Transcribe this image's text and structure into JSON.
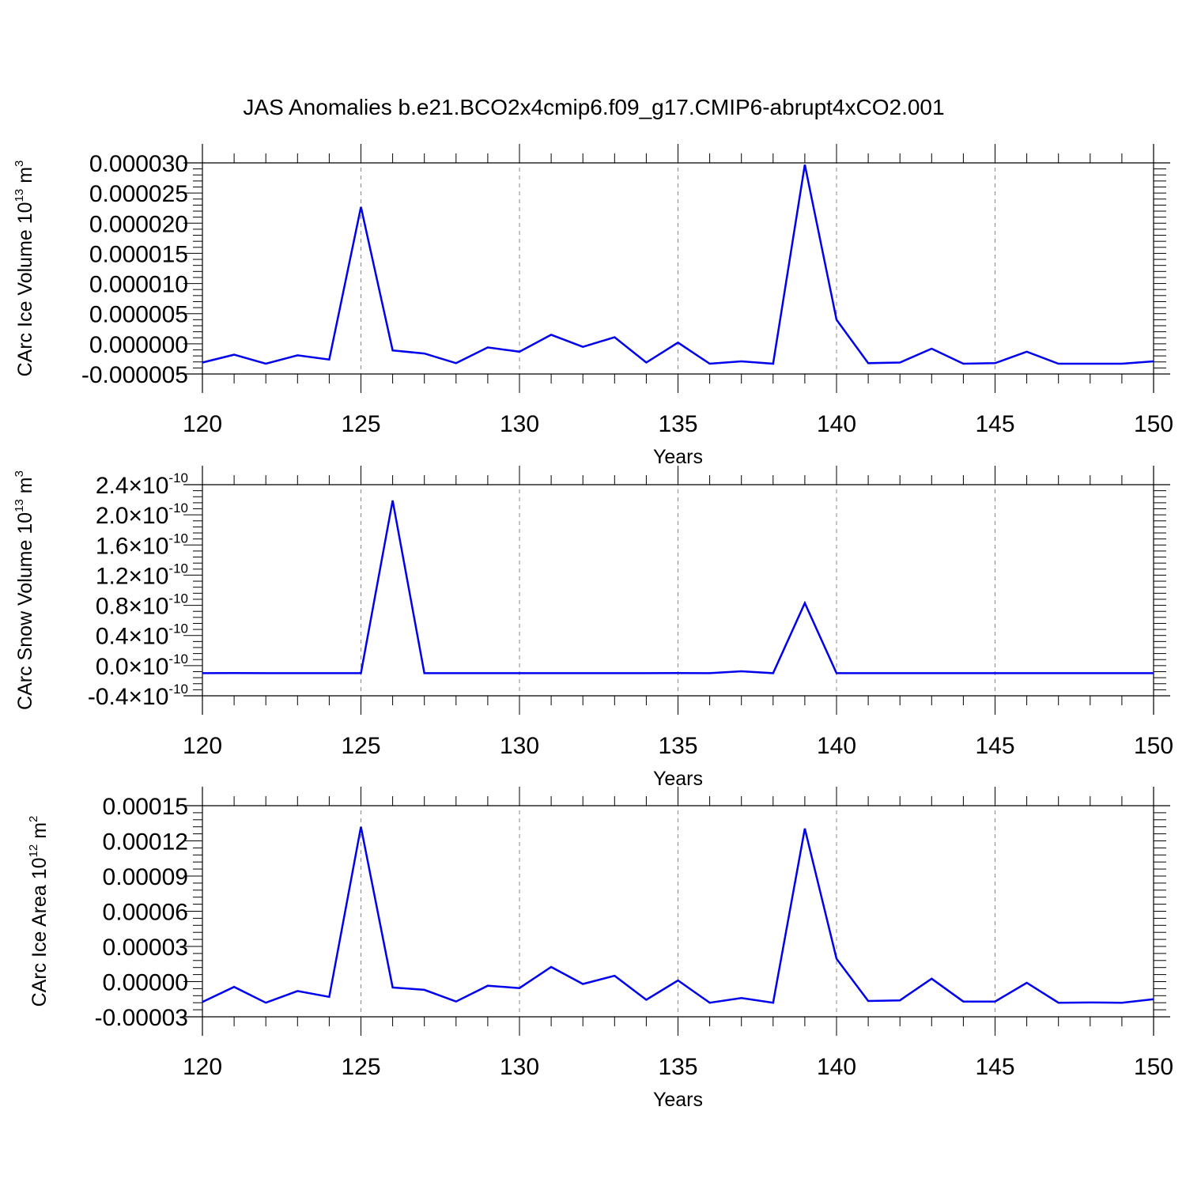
{
  "title": "JAS Anomalies b.e21.BCO2x4cmip6.f09_g17.CMIP6-abrupt4xCO2.001",
  "chart_data": [
    {
      "type": "line",
      "xlabel": "Years",
      "ylabel": "CArc Ice Volume 10",
      "ylabel_exp": "13",
      "ylabel_unit": " m",
      "ylabel_unit_exp": "3",
      "xlim": [
        120,
        150
      ],
      "ylim": [
        -5e-06,
        3e-05
      ],
      "x_ticks": [
        "120",
        "125",
        "130",
        "135",
        "140",
        "145",
        "150"
      ],
      "y_ticks": [
        {
          "value": 3e-05,
          "label": "0.000030"
        },
        {
          "value": 2.5e-05,
          "label": "0.000025"
        },
        {
          "value": 2e-05,
          "label": "0.000020"
        },
        {
          "value": 1.5e-05,
          "label": "0.000015"
        },
        {
          "value": 1e-05,
          "label": "0.000010"
        },
        {
          "value": 5e-06,
          "label": "0.000005"
        },
        {
          "value": 0.0,
          "label": "0.000000"
        },
        {
          "value": -5e-06,
          "label": "-0.000005"
        }
      ],
      "x": [
        120,
        121,
        122,
        123,
        124,
        125,
        126,
        127,
        128,
        129,
        130,
        131,
        132,
        133,
        134,
        135,
        136,
        137,
        138,
        139,
        140,
        141,
        142,
        143,
        144,
        145,
        146,
        147,
        148,
        149,
        150
      ],
      "series": [
        {
          "color": "#0000ee",
          "values": [
            -3.1e-06,
            -1.8e-06,
            -3.3e-06,
            -1.9e-06,
            -2.6e-06,
            2.27e-05,
            -1.1e-06,
            -1.6e-06,
            -3.2e-06,
            -6e-07,
            -1.3e-06,
            1.5e-06,
            -5e-07,
            1.1e-06,
            -3.1e-06,
            2e-07,
            -3.3e-06,
            -2.9e-06,
            -3.3e-06,
            2.97e-05,
            4e-06,
            -3.2e-06,
            -3.1e-06,
            -8e-07,
            -3.3e-06,
            -3.2e-06,
            -1.3e-06,
            -3.3e-06,
            -3.3e-06,
            -3.3e-06,
            -2.9e-06
          ]
        }
      ]
    },
    {
      "type": "line",
      "xlabel": "Years",
      "ylabel": "CArc Snow Volume 10",
      "ylabel_exp": "13",
      "ylabel_unit": " m",
      "ylabel_unit_exp": "3",
      "xlim": [
        120,
        150
      ],
      "ylim": [
        -4e-11,
        2.4e-10
      ],
      "x_ticks": [
        "120",
        "125",
        "130",
        "135",
        "140",
        "145",
        "150"
      ],
      "y_ticks": [
        {
          "value": 2.4e-10,
          "label": "2.4",
          "times": "×10",
          "exp": "-10"
        },
        {
          "value": 2e-10,
          "label": "2.0",
          "times": "×10",
          "exp": "-10"
        },
        {
          "value": 1.6e-10,
          "label": "1.6",
          "times": "×10",
          "exp": "-10"
        },
        {
          "value": 1.2e-10,
          "label": "1.2",
          "times": "×10",
          "exp": "-10"
        },
        {
          "value": 8e-11,
          "label": "0.8",
          "times": "×10",
          "exp": "-10"
        },
        {
          "value": 4e-11,
          "label": "0.4",
          "times": "×10",
          "exp": "-10"
        },
        {
          "value": 0.0,
          "label": "0.0",
          "times": "×10",
          "exp": "-10"
        },
        {
          "value": -4e-11,
          "label": "-0.4",
          "times": "×10",
          "exp": "-10"
        }
      ],
      "x": [
        120,
        121,
        122,
        123,
        124,
        125,
        126,
        127,
        128,
        129,
        130,
        131,
        132,
        133,
        134,
        135,
        136,
        137,
        138,
        139,
        140,
        141,
        142,
        143,
        144,
        145,
        146,
        147,
        148,
        149,
        150
      ],
      "series": [
        {
          "color": "#0000ee",
          "values": [
            -1e-11,
            -9.8e-12,
            -1e-11,
            -1e-11,
            -1e-11,
            -1e-11,
            2.19e-10,
            -1e-11,
            -1e-11,
            -1e-11,
            -1e-11,
            -1e-11,
            -1e-11,
            -1e-11,
            -1e-11,
            -9.8e-12,
            -1e-11,
            -7.5e-12,
            -1e-11,
            8.3e-11,
            -1e-11,
            -1e-11,
            -1e-11,
            -1e-11,
            -1e-11,
            -1e-11,
            -1e-11,
            -1e-11,
            -1e-11,
            -1e-11,
            -1e-11
          ]
        }
      ]
    },
    {
      "type": "line",
      "xlabel": "Years",
      "ylabel": "CArc Ice Area 10",
      "ylabel_exp": "12",
      "ylabel_unit": " m",
      "ylabel_unit_exp": "2",
      "xlim": [
        120,
        150
      ],
      "ylim": [
        -3e-05,
        0.00015
      ],
      "x_ticks": [
        "120",
        "125",
        "130",
        "135",
        "140",
        "145",
        "150"
      ],
      "y_ticks": [
        {
          "value": 0.00015,
          "label": "0.00015"
        },
        {
          "value": 0.00012,
          "label": "0.00012"
        },
        {
          "value": 9e-05,
          "label": "0.00009"
        },
        {
          "value": 6e-05,
          "label": "0.00006"
        },
        {
          "value": 3e-05,
          "label": "0.00003"
        },
        {
          "value": 0.0,
          "label": "0.00000"
        },
        {
          "value": -3e-05,
          "label": "-0.00003"
        }
      ],
      "x": [
        120,
        121,
        122,
        123,
        124,
        125,
        126,
        127,
        128,
        129,
        130,
        131,
        132,
        133,
        134,
        135,
        136,
        137,
        138,
        139,
        140,
        141,
        142,
        143,
        144,
        145,
        146,
        147,
        148,
        149,
        150
      ],
      "series": [
        {
          "color": "#0000ee",
          "values": [
            -1.73e-05,
            -4.5e-06,
            -1.8e-05,
            -8e-06,
            -1.3e-05,
            0.000132,
            -5e-06,
            -7e-06,
            -1.7e-05,
            -3.5e-06,
            -5.5e-06,
            1.25e-05,
            -2e-06,
            5e-06,
            -1.55e-05,
            1e-06,
            -1.8e-05,
            -1.4e-05,
            -1.8e-05,
            0.0001305,
            1.95e-05,
            -1.65e-05,
            -1.6e-05,
            2.5e-06,
            -1.7e-05,
            -1.7e-05,
            -1e-06,
            -1.8e-05,
            -1.78e-05,
            -1.8e-05,
            -1.5e-05
          ]
        }
      ]
    }
  ]
}
